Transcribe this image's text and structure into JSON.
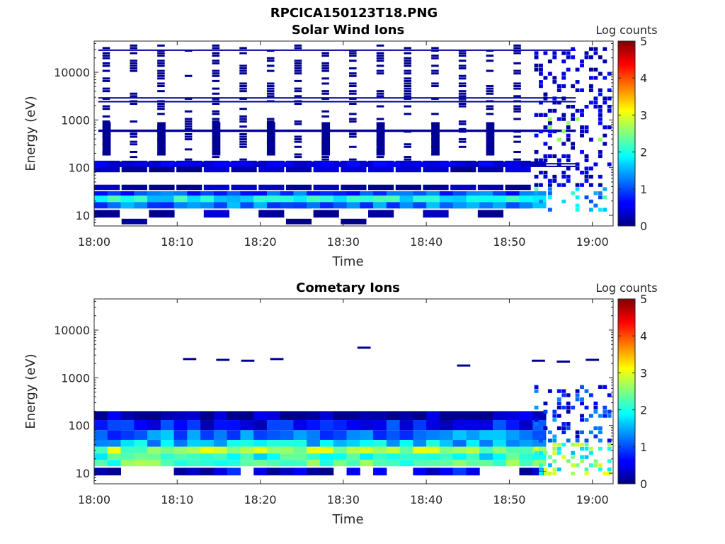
{
  "figure": {
    "title": "RPCICA150123T18.PNG"
  },
  "chart_data": [
    {
      "type": "heatmap",
      "title": "Solar Wind Ions",
      "xlabel": "Time",
      "ylabel": "Energy (eV)",
      "x_tick_labels": [
        "18:00",
        "18:10",
        "18:20",
        "18:30",
        "18:40",
        "18:50",
        "19:00"
      ],
      "x_tick_minutes": [
        0,
        10,
        20,
        30,
        40,
        50,
        60
      ],
      "xlim_minutes": [
        0,
        62.5
      ],
      "y_scale": "log",
      "y_tick_labels": [
        "10",
        "100",
        "1000",
        "10000"
      ],
      "y_tick_values": [
        10,
        100,
        1000,
        10000
      ],
      "ylim": [
        6,
        45000
      ],
      "colorbar": {
        "label": "Log counts",
        "range": [
          0,
          5
        ],
        "tick_labels": [
          "0",
          "1",
          "2",
          "3",
          "4",
          "5"
        ],
        "colormap": "jet"
      },
      "cell_width_minutes": 3,
      "column_starts_minutes": [
        0,
        3.3,
        6.6,
        9.9,
        13.2,
        16.5,
        19.8,
        23.1,
        26.4,
        29.7,
        33.0,
        36.3,
        39.6,
        42.9,
        46.2,
        49.5
      ],
      "bands": [
        {
          "energy_low": 6.5,
          "energy_high": 8.5,
          "log_counts": 0.1,
          "columns": [
            1,
            9,
            7
          ]
        },
        {
          "energy_low": 9,
          "energy_high": 13,
          "log_counts": 0.15,
          "columns": [
            0,
            2,
            4,
            6,
            8,
            10,
            12,
            14
          ]
        },
        {
          "energy_low": 14,
          "energy_high": 19,
          "log_counts": 1.0,
          "columns": "all"
        },
        {
          "energy_low": 19,
          "energy_high": 26,
          "log_counts": 1.8,
          "columns": "all"
        },
        {
          "energy_low": 26,
          "energy_high": 32,
          "log_counts": 0.9,
          "columns": "all"
        },
        {
          "energy_low": 34,
          "energy_high": 44,
          "log_counts": 0.15,
          "columns": "all"
        },
        {
          "energy_low": 80,
          "energy_high": 140,
          "log_counts": 0.2,
          "columns": "all"
        }
      ],
      "ion_lines_energy": [
        110,
        125,
        600,
        630,
        2500,
        3000,
        30000
      ]
    },
    {
      "type": "heatmap",
      "title": "Cometary Ions",
      "xlabel": "Time",
      "ylabel": "Energy (eV)",
      "x_tick_labels": [
        "18:00",
        "18:10",
        "18:20",
        "18:30",
        "18:40",
        "18:50",
        "19:00"
      ],
      "x_tick_minutes": [
        0,
        10,
        20,
        30,
        40,
        50,
        60
      ],
      "xlim_minutes": [
        0,
        62.5
      ],
      "y_scale": "log",
      "y_tick_labels": [
        "10",
        "100",
        "1000",
        "10000"
      ],
      "y_tick_values": [
        10,
        100,
        1000,
        10000
      ],
      "ylim": [
        6,
        45000
      ],
      "colorbar": {
        "label": "Log counts",
        "range": [
          0,
          5
        ],
        "tick_labels": [
          "0",
          "1",
          "2",
          "3",
          "4",
          "5"
        ],
        "colormap": "jet"
      },
      "bands": [
        {
          "energy_low": 9,
          "energy_high": 13,
          "log_counts": 0.5
        },
        {
          "energy_low": 14,
          "energy_high": 19,
          "log_counts": 2.3
        },
        {
          "energy_low": 19,
          "energy_high": 26,
          "log_counts": 2.0
        },
        {
          "energy_low": 26,
          "energy_high": 36,
          "log_counts": 2.6
        },
        {
          "energy_low": 36,
          "energy_high": 50,
          "log_counts": 1.6
        },
        {
          "energy_low": 50,
          "energy_high": 80,
          "log_counts": 1.2
        },
        {
          "energy_low": 80,
          "energy_high": 130,
          "log_counts": 0.7
        },
        {
          "energy_low": 130,
          "energy_high": 200,
          "log_counts": 0.2
        }
      ],
      "sparse_lines": [
        {
          "time_minutes": 11.5,
          "energy": 2600
        },
        {
          "time_minutes": 15.5,
          "energy": 2500
        },
        {
          "time_minutes": 18.5,
          "energy": 2400
        },
        {
          "time_minutes": 22,
          "energy": 2600
        },
        {
          "time_minutes": 32.5,
          "energy": 4500
        },
        {
          "time_minutes": 44.5,
          "energy": 1900
        },
        {
          "time_minutes": 53.5,
          "energy": 2400
        },
        {
          "time_minutes": 56.5,
          "energy": 2300
        },
        {
          "time_minutes": 60,
          "energy": 2500
        }
      ]
    }
  ]
}
